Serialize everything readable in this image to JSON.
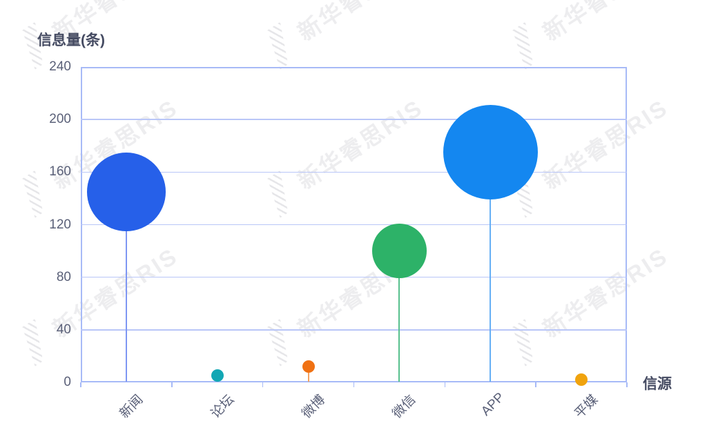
{
  "watermark": {
    "text": "新华睿思RIS"
  },
  "chart_data": {
    "type": "scatter",
    "variant": "bubble-lollipop",
    "title": "",
    "ylabel": "信息量(条)",
    "xlabel": "信源",
    "categories": [
      "新闻",
      "论坛",
      "微博",
      "微信",
      "APP",
      "平媒"
    ],
    "values": [
      145,
      5,
      12,
      100,
      175,
      2
    ],
    "ylim": [
      0,
      240
    ],
    "ytick_interval": 40,
    "yticks": [
      240,
      200,
      160,
      120,
      80,
      40,
      0
    ],
    "grid": true,
    "legend_position": "none",
    "point_colors": [
      "#2660e9",
      "#12a7b4",
      "#f07113",
      "#2db268",
      "#1487f0",
      "#f0a30e"
    ],
    "stem_colors": [
      "#7e96f3",
      "#4cc0c9",
      "#f5a260",
      "#58c18e",
      "#66aff5",
      "#f5c76d"
    ],
    "axis_color": "#a7baf7",
    "grid_color": "#b9c6f8",
    "tick_label_color": "#5a6078",
    "axis_title_color": "#454b62"
  }
}
